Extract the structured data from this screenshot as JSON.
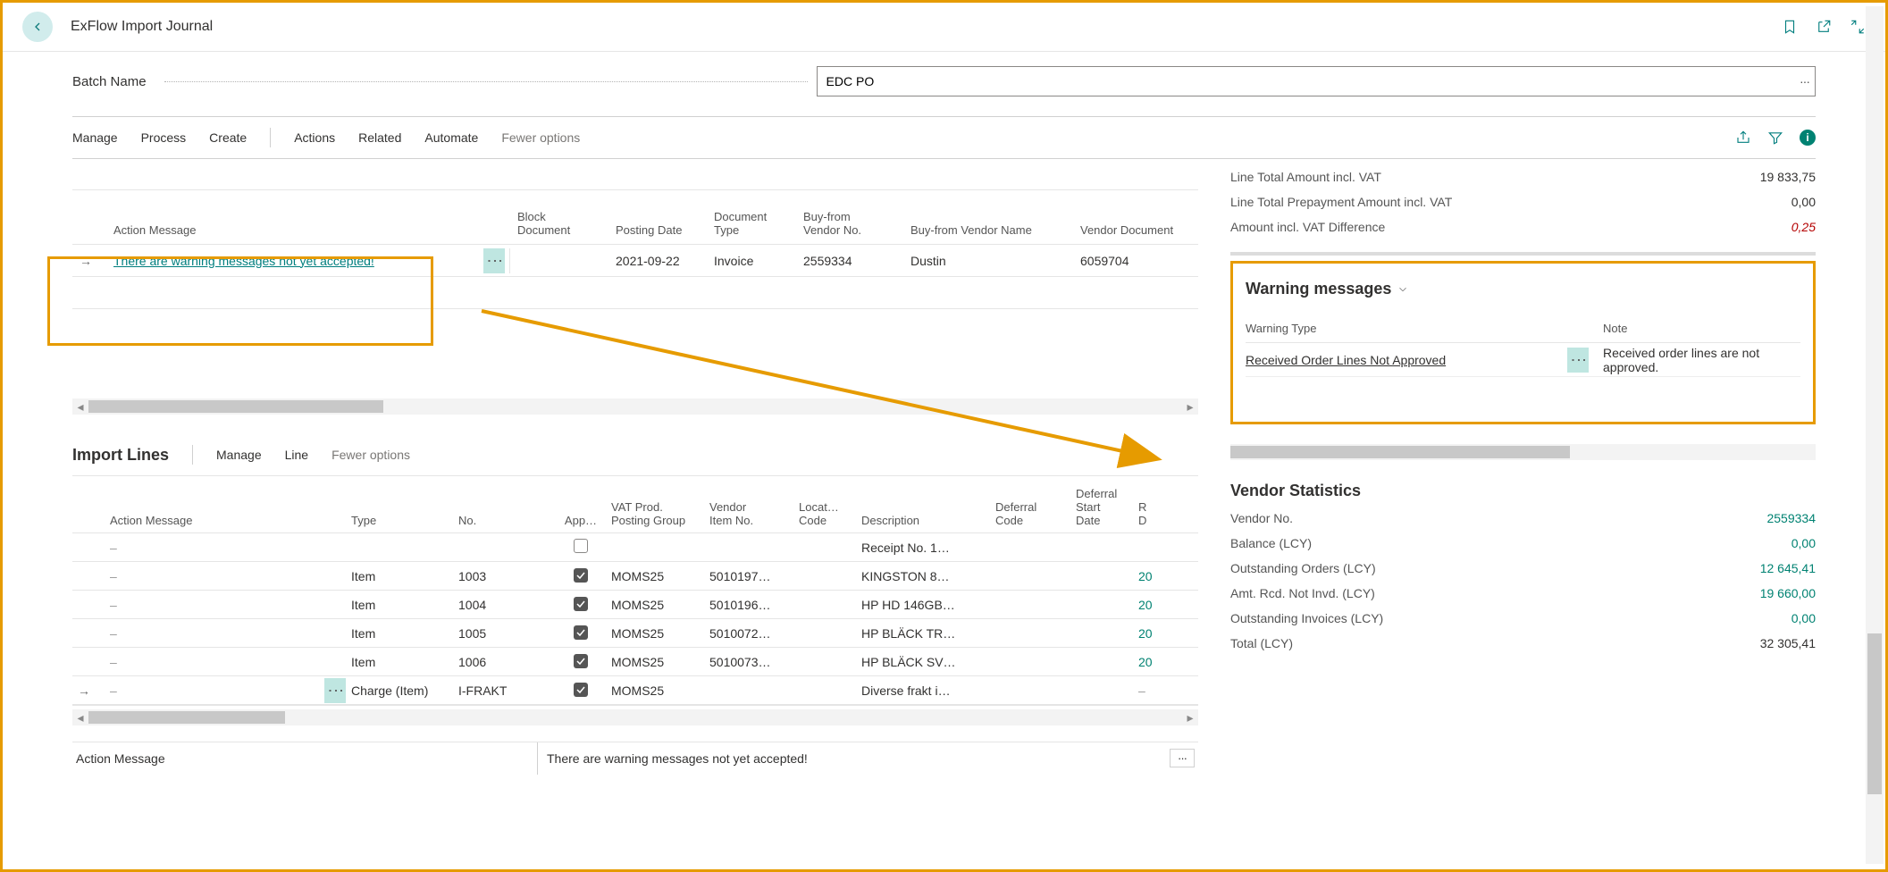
{
  "header": {
    "title": "ExFlow Import Journal"
  },
  "batch": {
    "label": "Batch Name",
    "value": "EDC PO"
  },
  "action_bar": {
    "manage": "Manage",
    "process": "Process",
    "create": "Create",
    "actions": "Actions",
    "related": "Related",
    "automate": "Automate",
    "fewer": "Fewer options"
  },
  "main_grid": {
    "columns": {
      "action_message": "Action Message",
      "block_document": "Block\nDocument",
      "posting_date": "Posting Date",
      "document_type": "Document\nType",
      "vendor_no": "Buy-from\nVendor No.",
      "vendor_name": "Buy-from Vendor Name",
      "vendor_doc": "Vendor Document"
    },
    "row": {
      "action_message": "There are warning messages not yet accepted!",
      "posting_date": "2021-09-22",
      "document_type": "Invoice",
      "vendor_no": "2559334",
      "vendor_name": "Dustin",
      "vendor_doc": "6059704"
    }
  },
  "import_lines": {
    "title": "Import Lines",
    "actions": {
      "manage": "Manage",
      "line": "Line",
      "fewer": "Fewer options"
    },
    "columns": {
      "action_message": "Action Message",
      "type": "Type",
      "no": "No.",
      "app": "App…",
      "vat_group": "VAT Prod.\nPosting Group",
      "vendor_item": "Vendor\nItem No.",
      "locat": "Locat…\nCode",
      "description": "Description",
      "deferral_code": "Deferral\nCode",
      "deferral_start": "Deferral\nStart\nDate",
      "r": "R\nD"
    },
    "rows": [
      {
        "type": "",
        "no": "",
        "app": "empty",
        "vat": "",
        "vendor_item": "",
        "description": "Receipt No. 1…",
        "r": ""
      },
      {
        "type": "Item",
        "no": "1003",
        "app": "checked",
        "vat": "MOMS25",
        "vendor_item": "5010197…",
        "description": "KINGSTON 8…",
        "r": "20"
      },
      {
        "type": "Item",
        "no": "1004",
        "app": "checked",
        "vat": "MOMS25",
        "vendor_item": "5010196…",
        "description": "HP HD 146GB…",
        "r": "20"
      },
      {
        "type": "Item",
        "no": "1005",
        "app": "checked",
        "vat": "MOMS25",
        "vendor_item": "5010072…",
        "description": "HP BLÄCK TR…",
        "r": "20"
      },
      {
        "type": "Item",
        "no": "1006",
        "app": "checked",
        "vat": "MOMS25",
        "vendor_item": "5010073…",
        "description": "HP BLÄCK SV…",
        "r": "20"
      },
      {
        "type": "Charge (Item)",
        "no": "I-FRAKT",
        "app": "checked",
        "vat": "MOMS25",
        "vendor_item": "",
        "description": "Diverse frakt i…",
        "r": "–",
        "sel": true
      }
    ],
    "status_label": "Action Message",
    "status_value": "There are warning messages not yet accepted!"
  },
  "summary": {
    "line_total_label": "Line Total Amount incl. VAT",
    "line_total_value": "19 833,75",
    "line_prepay_label": "Line Total Prepayment Amount incl. VAT",
    "line_prepay_value": "0,00",
    "amount_diff_label": "Amount incl. VAT Difference",
    "amount_diff_value": "0,25"
  },
  "warnings": {
    "title": "Warning messages",
    "col_type": "Warning Type",
    "col_note": "Note",
    "row_type": "Received Order Lines Not Approved",
    "row_note": "Received order lines are not approved."
  },
  "vendor_stats": {
    "title": "Vendor Statistics",
    "rows": [
      {
        "k": "Vendor No.",
        "v": "2559334",
        "link": true
      },
      {
        "k": "Balance (LCY)",
        "v": "0,00",
        "link": true
      },
      {
        "k": "Outstanding Orders (LCY)",
        "v": "12 645,41",
        "link": true
      },
      {
        "k": "Amt. Rcd. Not Invd. (LCY)",
        "v": "19 660,00",
        "link": true
      },
      {
        "k": "Outstanding Invoices (LCY)",
        "v": "0,00",
        "link": true
      },
      {
        "k": "Total (LCY)",
        "v": "32 305,41",
        "link": false
      }
    ]
  },
  "colors": {
    "orange": "#e69b00",
    "teal": "#008272",
    "red": "#b40000"
  }
}
